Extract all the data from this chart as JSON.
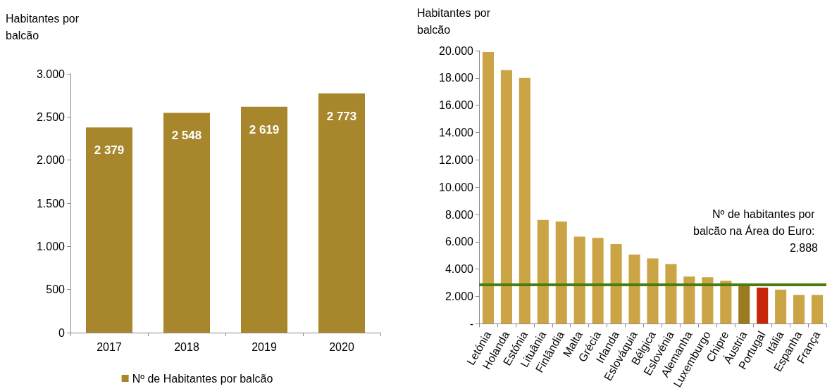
{
  "chart_data": [
    {
      "type": "bar",
      "ylabel": "Habitantes por balcão",
      "categories": [
        "2017",
        "2018",
        "2019",
        "2020"
      ],
      "series": [
        {
          "name": "Nº de Habitantes por balcão",
          "color": "#a8862b",
          "values": [
            2379,
            2548,
            2619,
            2773
          ],
          "value_labels": [
            "2 379",
            "2 548",
            "2 619",
            "2 773"
          ]
        }
      ],
      "ylim": [
        0,
        3000
      ],
      "yticks": [
        0,
        {
          "value": 500,
          "label": "500"
        },
        {
          "value": 1000,
          "label": "1.000"
        },
        {
          "value": 1500,
          "label": "1.500"
        },
        {
          "value": 2000,
          "label": "2.000"
        },
        {
          "value": 2500,
          "label": "2.500"
        },
        {
          "value": 3000,
          "label": "3.000"
        }
      ],
      "grid": false,
      "legend": "bottom"
    },
    {
      "type": "bar",
      "ylabel": "Habitantes por balcão",
      "categories": [
        "Letónia",
        "Holanda",
        "Estónia",
        "Lituânia",
        "Finlândia",
        "Malta",
        "Grécia",
        "Irlanda",
        "Eslováquia",
        "Bélgica",
        "Eslovénia",
        "Alemanha",
        "Luxemburgo",
        "Chipre",
        "Áustria",
        "Portugal",
        "Itália",
        "Espanha",
        "França"
      ],
      "values": [
        19900,
        18570,
        18000,
        7600,
        7490,
        6380,
        6290,
        5840,
        5070,
        4780,
        4370,
        3460,
        3400,
        3150,
        2900,
        2650,
        2500,
        2110,
        2110
      ],
      "colors": [
        "#caa445",
        "#caa445",
        "#caa445",
        "#caa445",
        "#caa445",
        "#caa445",
        "#caa445",
        "#caa445",
        "#caa445",
        "#caa445",
        "#caa445",
        "#caa445",
        "#caa445",
        "#caa445",
        "#9b7a22",
        "#c8260a",
        "#caa445",
        "#caa445",
        "#caa445"
      ],
      "ylim": [
        0,
        20000
      ],
      "yticks": [
        {
          "value": 0,
          "label": "-"
        },
        {
          "value": 2000,
          "label": "2.000"
        },
        {
          "value": 4000,
          "label": "4.000"
        },
        {
          "value": 6000,
          "label": "6.000"
        },
        {
          "value": 8000,
          "label": "8.000"
        },
        {
          "value": 10000,
          "label": "10.000"
        },
        {
          "value": 12000,
          "label": "12.000"
        },
        {
          "value": 14000,
          "label": "14.000"
        },
        {
          "value": 16000,
          "label": "16.000"
        },
        {
          "value": 18000,
          "label": "18.000"
        },
        {
          "value": 20000,
          "label": "20.000"
        }
      ],
      "ref_lines": [
        {
          "axis": "y",
          "value": 2888,
          "label": "Nº de habitantes por balcão na Área do Euro: 2.888",
          "color": "#4a7f10"
        }
      ],
      "grid": false,
      "legend": false
    }
  ]
}
